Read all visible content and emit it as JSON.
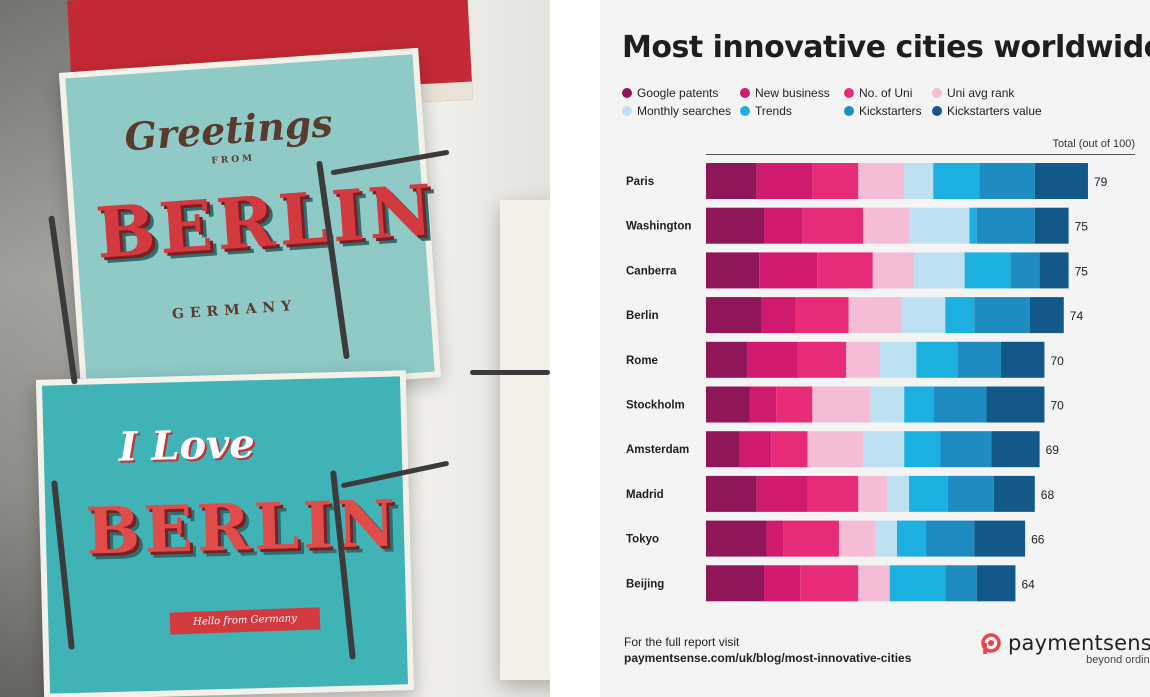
{
  "photo": {
    "card_top_script": "Greetings",
    "card_top_from": "FROM",
    "card_top_city": "BERLIN",
    "card_top_country": "GERMANY",
    "card_bottom_script": "I Love",
    "card_bottom_city": "BERLIN",
    "card_bottom_ribbon": "Hello from Germany"
  },
  "chart_data": {
    "type": "bar",
    "stacked": true,
    "orientation": "horizontal",
    "title": "Most innovative cities worldwide",
    "total_label": "Total (out of 100)",
    "categories": [
      "Paris",
      "Washington",
      "Canberra",
      "Berlin",
      "Rome",
      "Stockholm",
      "Amsterdam",
      "Madrid",
      "Tokyo",
      "Beijing"
    ],
    "totals": [
      79,
      75,
      75,
      74,
      70,
      70,
      69,
      68,
      66,
      64
    ],
    "xlim": [
      0,
      100
    ],
    "legend_position": "top",
    "series": [
      {
        "name": "Google patents",
        "color": "#8f1759",
        "values": [
          10.5,
          12.0,
          11.0,
          11.5,
          8.5,
          9.0,
          7.0,
          10.5,
          12.5,
          12.0
        ]
      },
      {
        "name": "New business",
        "color": "#cf1a6d",
        "values": [
          11.5,
          8.0,
          12.0,
          7.0,
          10.5,
          5.5,
          6.5,
          10.5,
          3.5,
          7.5
        ]
      },
      {
        "name": "No. of Uni",
        "color": "#e72b79",
        "values": [
          9.5,
          12.5,
          11.5,
          11.0,
          10.0,
          7.5,
          7.5,
          10.5,
          11.5,
          12.0
        ]
      },
      {
        "name": "Uni avg rank",
        "color": "#f5bcd6",
        "values": [
          9.5,
          9.5,
          8.5,
          11.0,
          7.0,
          12.0,
          11.5,
          6.0,
          7.5,
          6.5
        ]
      },
      {
        "name": "Monthly searches",
        "color": "#bde1f0",
        "values": [
          6.0,
          12.5,
          10.5,
          9.0,
          7.5,
          7.0,
          8.5,
          4.5,
          4.5,
          0.0
        ]
      },
      {
        "name": "Trends",
        "color": "#1cb0e0",
        "values": [
          9.5,
          1.5,
          9.5,
          6.0,
          8.5,
          6.0,
          7.5,
          8.0,
          6.0,
          11.5
        ]
      },
      {
        "name": "Kickstarters",
        "color": "#1f8cc1",
        "values": [
          11.5,
          12.0,
          6.0,
          11.5,
          9.0,
          11.0,
          10.5,
          9.5,
          10.0,
          6.5
        ]
      },
      {
        "name": "Kickstarters value",
        "color": "#12598a",
        "values": [
          11.0,
          7.0,
          6.0,
          7.0,
          9.0,
          12.0,
          10.0,
          8.5,
          10.5,
          8.0
        ]
      }
    ]
  },
  "footer": {
    "line1": "For the full report visit",
    "line2": "paymentsense.com/uk/blog/most-innovative-cities"
  },
  "brand": {
    "name": "paymentsense",
    "tagline": "beyond ordinary",
    "color": "#e8474c"
  }
}
